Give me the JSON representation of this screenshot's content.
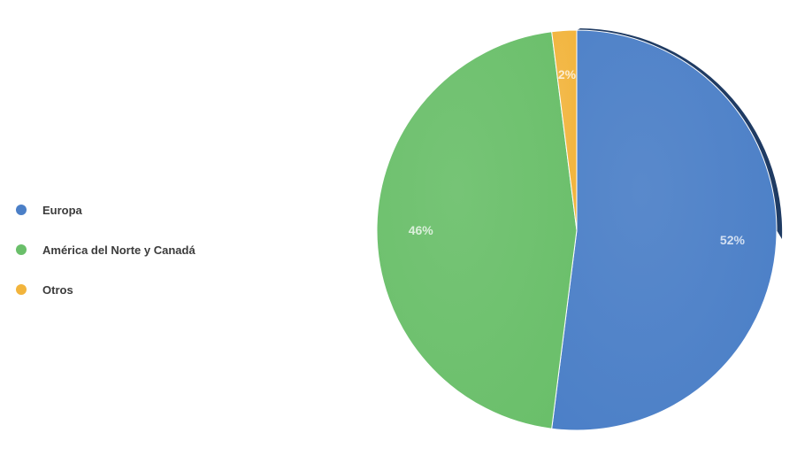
{
  "chart_data": {
    "type": "pie",
    "categories": [
      "Europa",
      "América del Norte y Canadá",
      "Otros"
    ],
    "values": [
      52,
      46,
      2
    ],
    "data_labels": [
      "52%",
      "46%",
      "2%"
    ],
    "colors": [
      "#4b7fc7",
      "#6abf6a",
      "#f2b43c"
    ],
    "legend_position": "left"
  },
  "legend": {
    "items": [
      {
        "label": "Europa",
        "color": "#4b7fc7"
      },
      {
        "label": "América del Norte y Canadá",
        "color": "#6abf6a"
      },
      {
        "label": "Otros",
        "color": "#f2b43c"
      }
    ]
  }
}
